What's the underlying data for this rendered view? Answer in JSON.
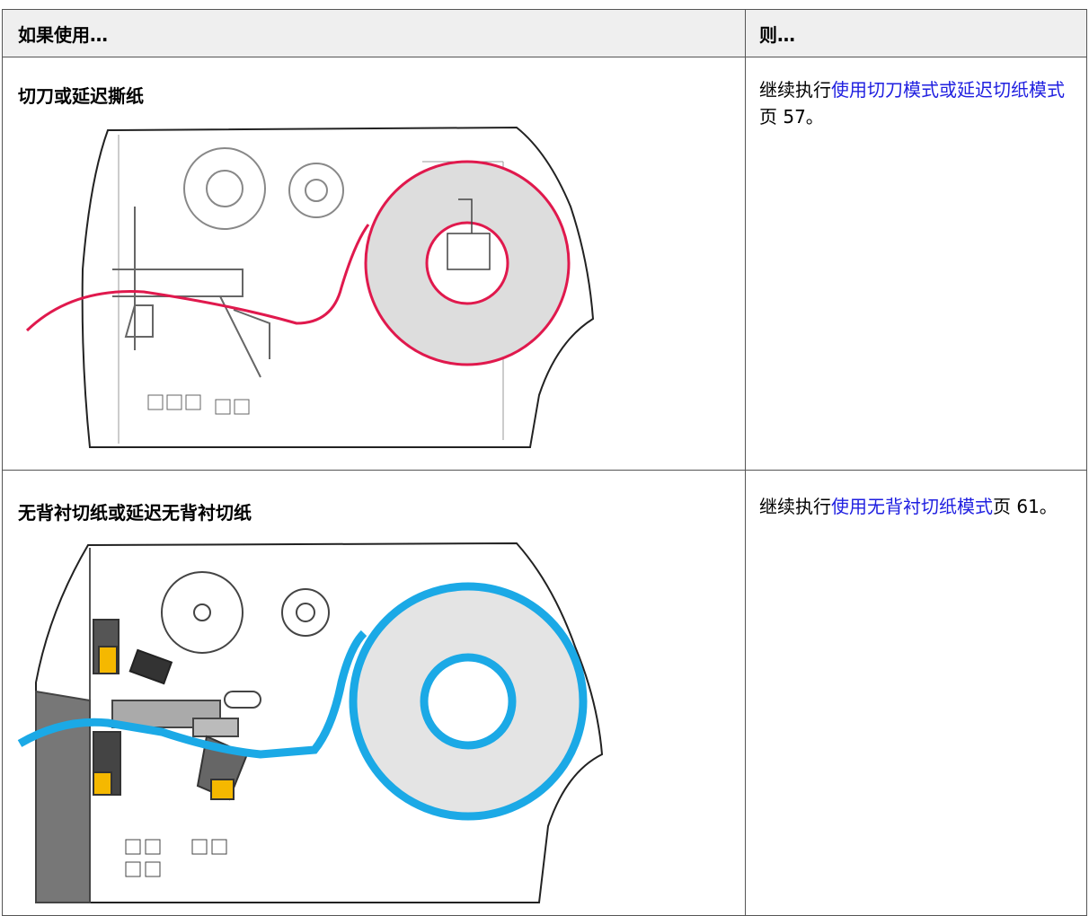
{
  "header": {
    "cells": [
      "如果使用…",
      "则…"
    ]
  },
  "rows": [
    {
      "label": "切刀或延迟撕纸",
      "action": {
        "prefix": "继续执行",
        "link": "使用切刀模式或延迟切纸模式",
        "suffix": " 页 57。"
      }
    },
    {
      "label": "无背衬切纸或延迟无背衬切纸",
      "action": {
        "prefix": "继续执行",
        "link": "使用无背衬切纸模式",
        "suffix": "页 61。"
      }
    }
  ]
}
